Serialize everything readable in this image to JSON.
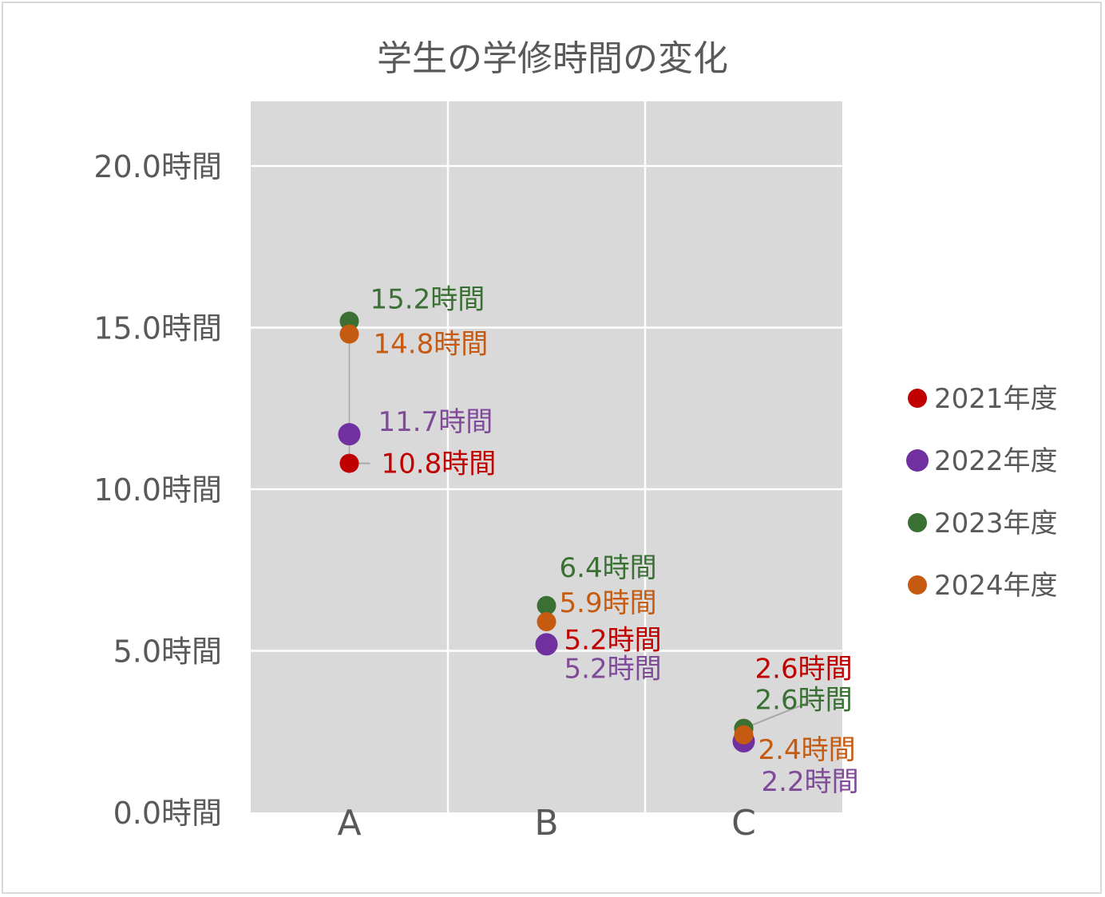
{
  "chart_data": {
    "type": "scatter",
    "title": "学生の学修時間の変化",
    "categories": [
      "A",
      "B",
      "C"
    ],
    "ylim": [
      0,
      22
    ],
    "yticks": [
      0,
      5,
      10,
      15,
      20
    ],
    "ytick_labels": [
      "0.0時間",
      "5.0時間",
      "10.0時間",
      "15.0時間",
      "20.0時間"
    ],
    "grid": true,
    "legend_position": "right",
    "series": [
      {
        "name": "2021年度",
        "color": "#C00000",
        "values": [
          10.8,
          5.2,
          2.6
        ],
        "labels": [
          "10.8時間",
          "5.2時間",
          "2.6時間"
        ]
      },
      {
        "name": "2022年度",
        "color": "#7030A0",
        "values": [
          11.7,
          5.2,
          2.2
        ],
        "labels": [
          "11.7時間",
          "5.2時間",
          "2.2時間"
        ]
      },
      {
        "name": "2023年度",
        "color": "#3A7034",
        "values": [
          15.2,
          6.4,
          2.6
        ],
        "labels": [
          "15.2時間",
          "6.4時間",
          "2.6時間"
        ]
      },
      {
        "name": "2024年度",
        "color": "#C55A11",
        "values": [
          14.8,
          5.9,
          2.4
        ],
        "labels": [
          "14.8時間",
          "5.9時間",
          "2.4時間"
        ]
      }
    ],
    "label_colors": {
      "2021年度": "#C00000",
      "2022年度": "#7F4A98",
      "2023年度": "#3A7034",
      "2024年度": "#C55A11"
    }
  }
}
